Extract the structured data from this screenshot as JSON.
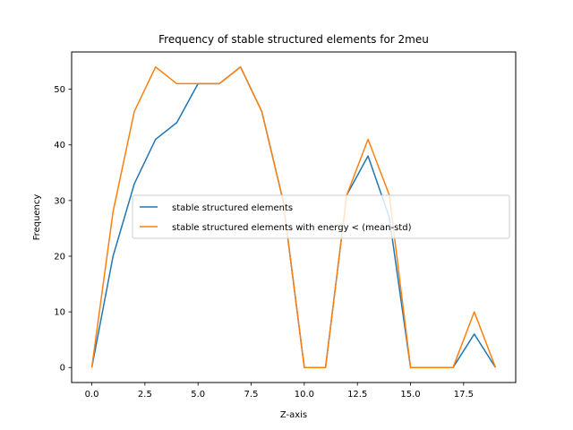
{
  "chart_data": {
    "type": "line",
    "title": "Frequency of stable structured elements for 2meu",
    "xlabel": "Z-axis",
    "ylabel": "Frequency",
    "xlim": [
      -0.95,
      19.95
    ],
    "ylim": [
      -2.7,
      56.7
    ],
    "xticks": [
      0.0,
      2.5,
      5.0,
      7.5,
      10.0,
      12.5,
      15.0,
      17.5
    ],
    "xtick_labels": [
      "0.0",
      "2.5",
      "5.0",
      "7.5",
      "10.0",
      "12.5",
      "15.0",
      "17.5"
    ],
    "yticks": [
      0,
      10,
      20,
      30,
      40,
      50
    ],
    "ytick_labels": [
      "0",
      "10",
      "20",
      "30",
      "40",
      "50"
    ],
    "grid": false,
    "legend_placement": "center-right",
    "x": [
      0,
      1,
      2,
      3,
      4,
      5,
      6,
      7,
      8,
      9,
      10,
      11,
      12,
      13,
      14,
      15,
      16,
      17,
      18,
      19
    ],
    "series": [
      {
        "name": "stable structured elements",
        "color": "#1f77b4",
        "values": [
          0,
          20,
          33,
          41,
          44,
          51,
          51,
          54,
          46,
          30,
          0,
          0,
          31,
          38,
          27,
          0,
          0,
          0,
          6,
          0
        ]
      },
      {
        "name": "stable structured elements with energy < (mean-std)",
        "color": "#ff7f0e",
        "values": [
          0,
          28,
          46,
          54,
          51,
          51,
          51,
          54,
          46,
          30,
          0,
          0,
          31,
          41,
          31,
          0,
          0,
          0,
          10,
          0
        ]
      }
    ]
  }
}
